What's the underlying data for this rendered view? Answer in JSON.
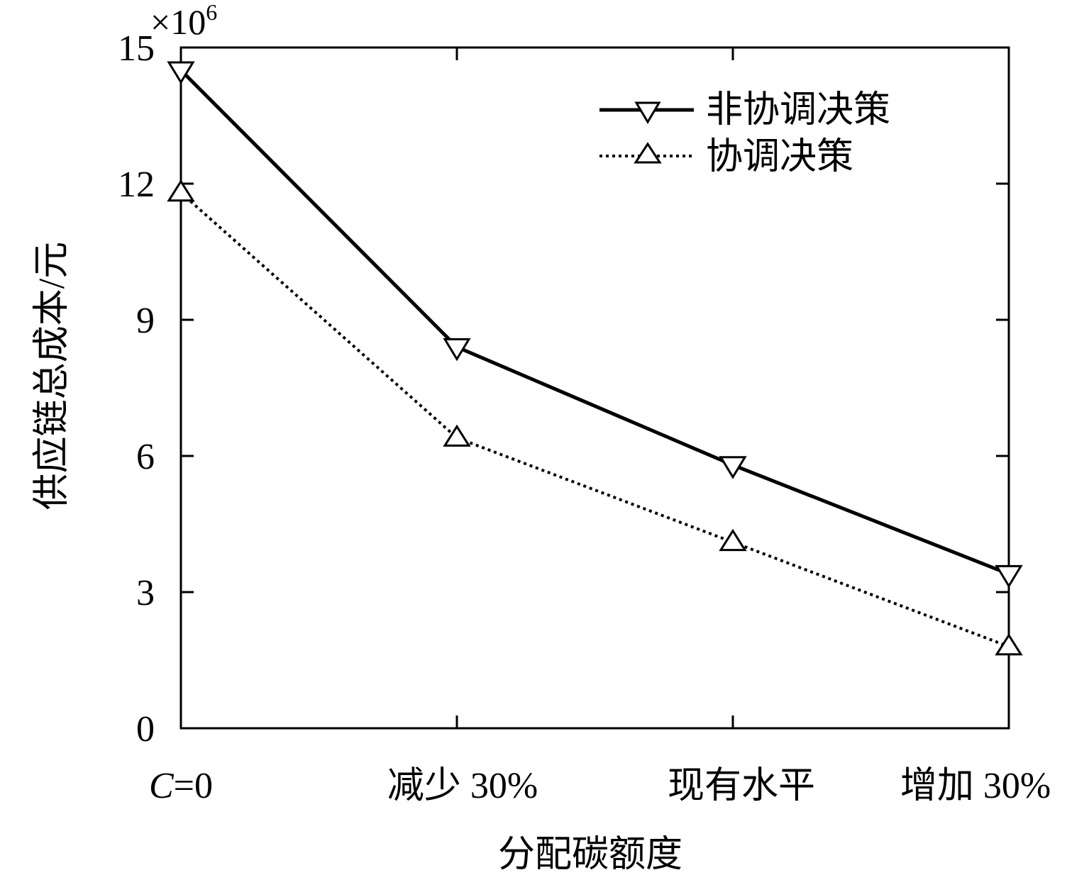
{
  "chart_data": {
    "type": "line",
    "categories": [
      "C=0",
      "减少 30%",
      "现有水平",
      "增加 30%"
    ],
    "category_labels": [
      {
        "italic": "C",
        "rest": "=0"
      },
      {
        "italic": "",
        "rest": "减少 30%"
      },
      {
        "italic": "",
        "rest": "现有水平"
      },
      {
        "italic": "",
        "rest": "增加 30%"
      }
    ],
    "series": [
      {
        "name": "非协调决策",
        "marker": "triangle-down",
        "line_style": "solid",
        "values": [
          14.5,
          8.4,
          5.8,
          3.4
        ]
      },
      {
        "name": "协调决策",
        "marker": "triangle-up",
        "line_style": "dotted",
        "values": [
          11.8,
          6.4,
          4.1,
          1.8
        ]
      }
    ],
    "xlabel": "分配碳额度",
    "ylabel": "供应链总成本/元",
    "y_multiplier": {
      "base": "×10",
      "exponent": "6"
    },
    "ylim": [
      0,
      15
    ],
    "yticks": [
      "0",
      "3",
      "6",
      "9",
      "12",
      "15"
    ],
    "ytick_values": [
      0,
      3,
      6,
      9,
      12,
      15
    ],
    "grid": false,
    "legend_position": "top-right",
    "color": "#000000"
  }
}
